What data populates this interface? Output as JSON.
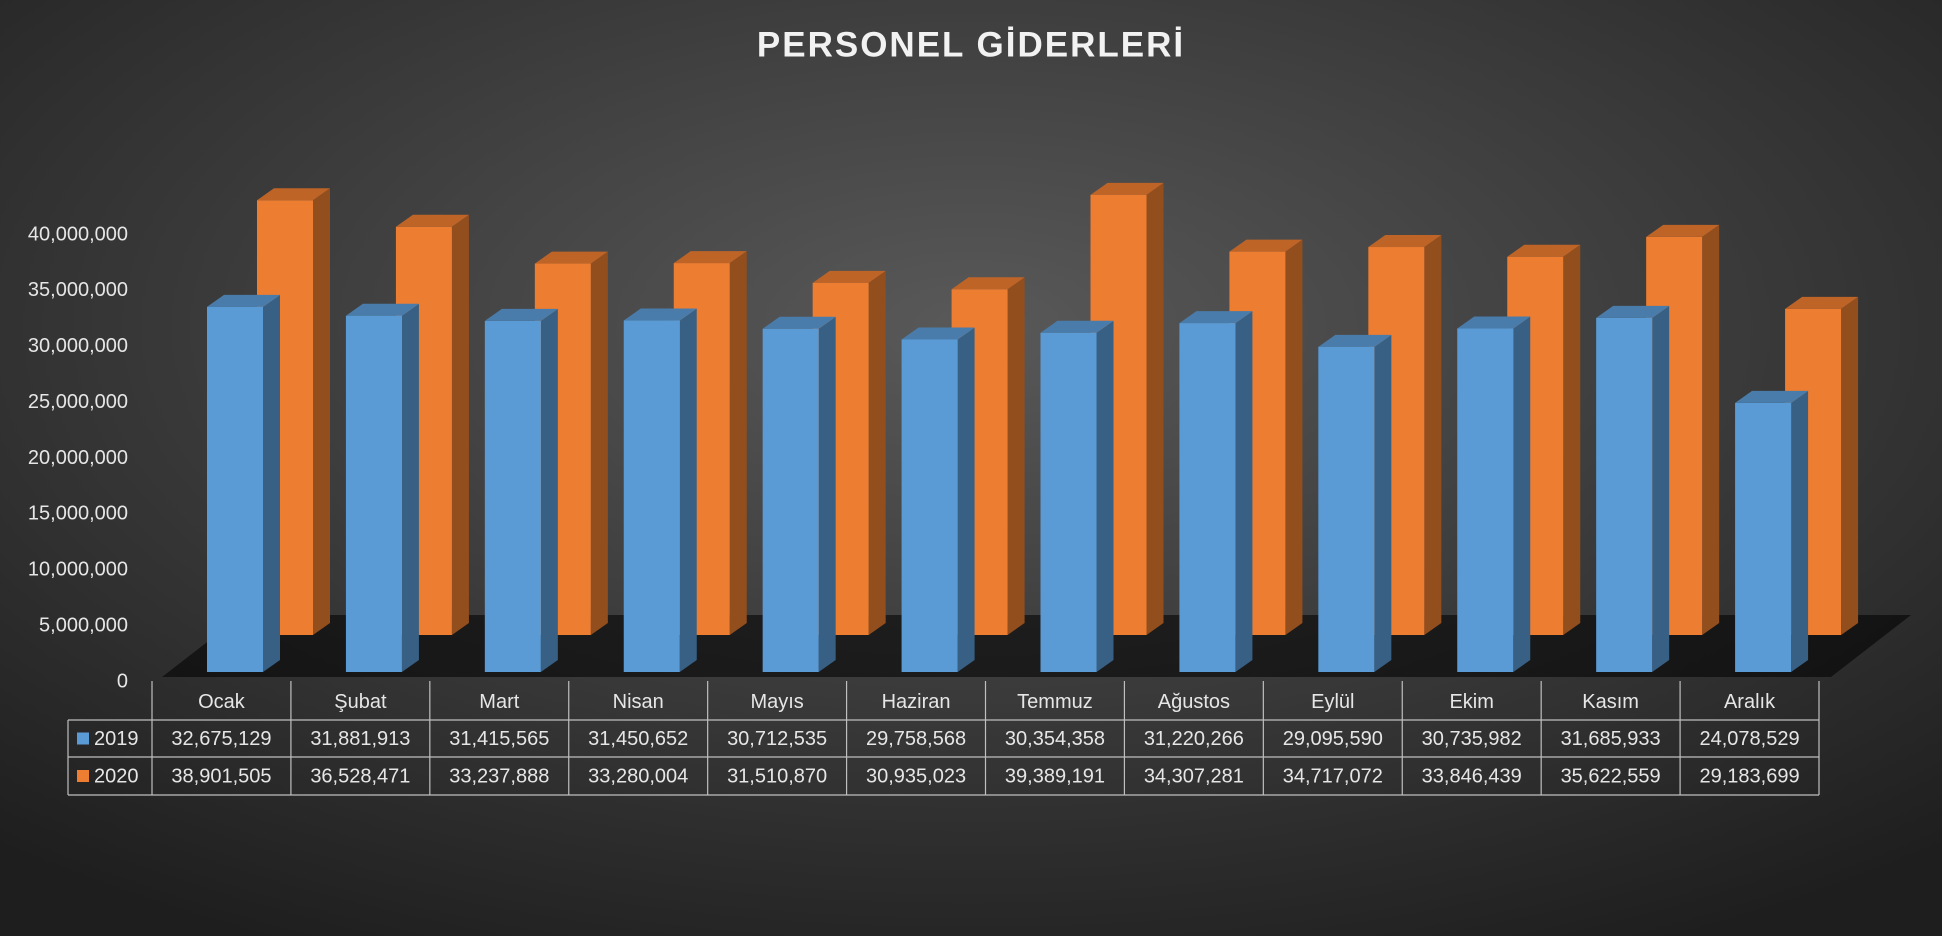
{
  "chart_data": {
    "type": "bar3d",
    "title": "PERSONEL GİDERLERİ",
    "categories": [
      "Ocak",
      "Şubat",
      "Mart",
      "Nisan",
      "Mayıs",
      "Haziran",
      "Temmuz",
      "Ağustos",
      "Eylül",
      "Ekim",
      "Kasım",
      "Aralık"
    ],
    "series": [
      {
        "name": "2019",
        "color": "#5b9bd5",
        "values": [
          32675129,
          31881913,
          31415565,
          31450652,
          30712535,
          29758568,
          30354358,
          31220266,
          29095590,
          30735982,
          31685933,
          24078529
        ],
        "value_labels": [
          "32,675,129",
          "31,881,913",
          "31,415,565",
          "31,450,652",
          "30,712,535",
          "29,758,568",
          "30,354,358",
          "31,220,266",
          "29,095,590",
          "30,735,982",
          "31,685,933",
          "24,078,529"
        ]
      },
      {
        "name": "2020",
        "color": "#ed7d31",
        "values": [
          38901505,
          36528471,
          33237888,
          33280004,
          31510870,
          30935023,
          39389191,
          34307281,
          34717072,
          33846439,
          35622559,
          29183699
        ],
        "value_labels": [
          "38,901,505",
          "36,528,471",
          "33,237,888",
          "33,280,004",
          "31,510,870",
          "30,935,023",
          "39,389,191",
          "34,307,281",
          "34,717,072",
          "33,846,439",
          "35,622,559",
          "29,183,699"
        ]
      }
    ],
    "ylim": [
      0,
      40000000
    ],
    "yticks": [
      0,
      {
        "value": 5000000,
        "label": "5,000,000"
      },
      {
        "value": 10000000,
        "label": "10,000,000"
      },
      {
        "value": 15000000,
        "label": "15,000,000"
      },
      {
        "value": 20000000,
        "label": "20,000,000"
      },
      {
        "value": 25000000,
        "label": "25,000,000"
      },
      {
        "value": 30000000,
        "label": "30,000,000"
      },
      {
        "value": 35000000,
        "label": "35,000,000"
      },
      {
        "value": 40000000,
        "label": "40,000,000"
      }
    ],
    "grid": false,
    "data_table": true
  }
}
